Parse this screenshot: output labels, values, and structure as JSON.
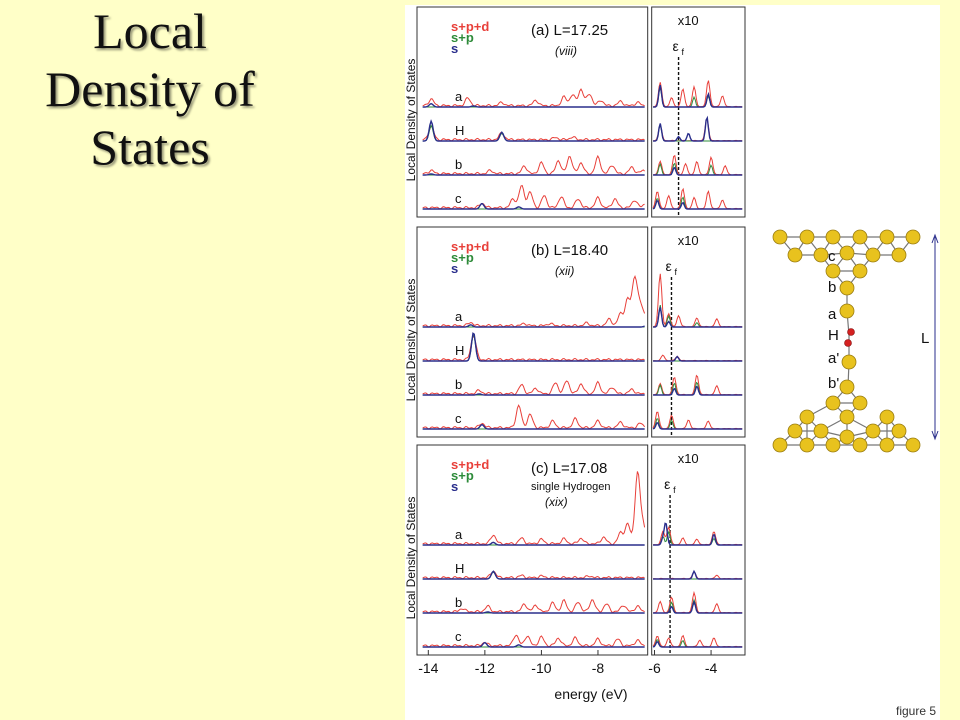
{
  "slide": {
    "title": "Local\nDensity of\nStates",
    "caption": "figure 5"
  },
  "chart_data": {
    "type": "line",
    "xlabel": "energy (eV)",
    "ylabel": "Local Density of States",
    "x_ticks": [
      -14,
      -12,
      -10,
      -8,
      -6,
      -4
    ],
    "xlim": [
      -14.4,
      -2.8
    ],
    "inset_break_x": -6.1,
    "inset_scale_label": "x10",
    "fermi_label": "ε",
    "fermi_sub": "f",
    "legend": [
      "s+p+d",
      "s+p",
      "s"
    ],
    "series_colors": {
      "s+p+d": "#e8403a",
      "s+p": "#2e8b3a",
      "s": "#2a2e8c"
    },
    "panels": [
      {
        "label": "(a) L=17.25",
        "sublabel": "(viii)",
        "note": "",
        "fermi_energy": -5.15,
        "traces": [
          {
            "name": "a",
            "s": [
              [
                -13.9,
                0.15
              ],
              [
                -12.4,
                0.05
              ]
            ],
            "spd": [
              [
                -13.9,
                0.3
              ],
              [
                -12.6,
                0.35
              ],
              [
                -11.4,
                0.15
              ],
              [
                -10.2,
                0.25
              ],
              [
                -9.2,
                0.4
              ],
              [
                -8.9,
                0.5
              ],
              [
                -8.6,
                0.75
              ],
              [
                -8.3,
                0.55
              ],
              [
                -7.9,
                0.25
              ],
              [
                -7.2,
                0.2
              ],
              [
                -6.6,
                0.15
              ],
              [
                -5.8,
                1.1
              ],
              [
                -5.4,
                0.4
              ],
              [
                -5.0,
                0.8
              ],
              [
                -4.6,
                0.9
              ],
              [
                -4.1,
                1.2
              ],
              [
                -3.6,
                0.5
              ]
            ],
            "sp": [
              [
                -5.8,
                0.9
              ],
              [
                -4.6,
                0.45
              ],
              [
                -4.1,
                0.5
              ]
            ],
            "inset_s": [
              [
                -5.8,
                1.0
              ],
              [
                -4.1,
                0.6
              ]
            ]
          },
          {
            "name": "H",
            "s": [
              [
                -13.9,
                0.9
              ],
              [
                -11.4,
                0.4
              ],
              [
                -5.8,
                0.8
              ],
              [
                -5.15,
                0.2
              ],
              [
                -4.8,
                0.35
              ],
              [
                -4.15,
                1.1
              ]
            ],
            "spd": [
              [
                -13.9,
                0.6
              ],
              [
                -11.4,
                0.3
              ],
              [
                -9.5,
                0.1
              ],
              [
                -8.9,
                0.12
              ],
              [
                -5.8,
                0.7
              ],
              [
                -4.15,
                1.0
              ]
            ],
            "sp": [
              [
                -13.9,
                0.7
              ],
              [
                -11.4,
                0.35
              ],
              [
                -5.8,
                0.75
              ]
            ],
            "inset_s": []
          },
          {
            "name": "b",
            "s": [
              [
                -13.9,
                0.05
              ]
            ],
            "spd": [
              [
                -13.9,
                0.15
              ],
              [
                -11.8,
                0.15
              ],
              [
                -10.6,
                0.35
              ],
              [
                -10.0,
                0.5
              ],
              [
                -9.4,
                0.6
              ],
              [
                -9.0,
                0.8
              ],
              [
                -8.6,
                0.5
              ],
              [
                -8.0,
                0.75
              ],
              [
                -7.5,
                0.4
              ],
              [
                -6.8,
                0.3
              ],
              [
                -6.4,
                0.15
              ],
              [
                -5.8,
                0.6
              ],
              [
                -5.3,
                0.9
              ],
              [
                -4.9,
                0.5
              ],
              [
                -4.5,
                0.6
              ],
              [
                -4.0,
                0.8
              ],
              [
                -3.5,
                0.4
              ]
            ],
            "sp": [
              [
                -5.8,
                0.5
              ],
              [
                -5.3,
                0.55
              ],
              [
                -4.0,
                0.45
              ]
            ],
            "inset_s": [
              [
                -5.3,
                0.35
              ]
            ]
          },
          {
            "name": "c",
            "s": [
              [
                -12.1,
                0.25
              ],
              [
                -10.8,
                0.1
              ]
            ],
            "spd": [
              [
                -12.1,
                0.2
              ],
              [
                -11.0,
                0.4
              ],
              [
                -10.7,
                1.0
              ],
              [
                -10.4,
                0.7
              ],
              [
                -9.9,
                0.55
              ],
              [
                -9.3,
                0.5
              ],
              [
                -8.7,
                0.4
              ],
              [
                -8.0,
                0.45
              ],
              [
                -7.4,
                0.4
              ],
              [
                -6.7,
                0.35
              ],
              [
                -6.3,
                0.2
              ],
              [
                -5.9,
                0.8
              ],
              [
                -5.5,
                0.6
              ],
              [
                -5.0,
                0.9
              ],
              [
                -4.6,
                0.5
              ],
              [
                -4.1,
                0.8
              ],
              [
                -3.6,
                0.4
              ]
            ],
            "sp": [
              [
                -5.9,
                0.5
              ],
              [
                -5.0,
                0.55
              ]
            ],
            "inset_s": [
              [
                -5.9,
                0.4
              ],
              [
                -5.0,
                0.3
              ]
            ]
          }
        ]
      },
      {
        "label": "(b) L=18.40",
        "sublabel": "(xii)",
        "note": "",
        "fermi_energy": -5.4,
        "traces": [
          {
            "name": "a",
            "s": [
              [
                -12.5,
                0.1
              ],
              [
                -6.3,
                0.05
              ]
            ],
            "spd": [
              [
                -12.5,
                0.15
              ],
              [
                -10.6,
                0.1
              ],
              [
                -9.7,
                0.1
              ],
              [
                -8.4,
                0.12
              ],
              [
                -7.6,
                0.3
              ],
              [
                -7.2,
                0.55
              ],
              [
                -6.95,
                1.2
              ],
              [
                -6.7,
                2.2
              ],
              [
                -6.5,
                0.9
              ],
              [
                -6.3,
                0.4
              ],
              [
                -5.8,
                2.4
              ],
              [
                -5.5,
                0.6
              ],
              [
                -5.15,
                0.5
              ],
              [
                -4.5,
                0.4
              ],
              [
                -3.8,
                0.35
              ]
            ],
            "sp": [
              [
                -5.8,
                1.0
              ],
              [
                -5.5,
                0.5
              ],
              [
                -4.5,
                0.2
              ]
            ],
            "inset_s": [
              [
                -5.8,
                0.9
              ],
              [
                -5.5,
                0.25
              ]
            ]
          },
          {
            "name": "H",
            "s": [
              [
                -12.4,
                1.3
              ]
            ],
            "spd": [
              [
                -12.4,
                1.1
              ],
              [
                -5.7,
                0.25
              ],
              [
                -5.2,
                0.2
              ]
            ],
            "sp": [
              [
                -12.4,
                1.2
              ]
            ],
            "inset_s": [
              [
                -5.2,
                0.2
              ]
            ]
          },
          {
            "name": "b",
            "s": [
              [
                -12.2,
                0.05
              ]
            ],
            "spd": [
              [
                -12.2,
                0.15
              ],
              [
                -10.7,
                0.4
              ],
              [
                -10.2,
                0.25
              ],
              [
                -9.5,
                0.5
              ],
              [
                -9.1,
                0.6
              ],
              [
                -8.6,
                0.45
              ],
              [
                -8.0,
                0.5
              ],
              [
                -7.5,
                0.3
              ],
              [
                -6.8,
                0.2
              ],
              [
                -5.8,
                0.5
              ],
              [
                -5.3,
                0.8
              ],
              [
                -4.5,
                0.9
              ],
              [
                -3.8,
                0.4
              ]
            ],
            "sp": [
              [
                -5.8,
                0.45
              ],
              [
                -5.3,
                0.55
              ],
              [
                -4.5,
                0.6
              ]
            ],
            "inset_s": [
              [
                -5.3,
                0.3
              ],
              [
                -4.5,
                0.4
              ]
            ]
          },
          {
            "name": "c",
            "s": [
              [
                -12.1,
                0.2
              ]
            ],
            "spd": [
              [
                -12.1,
                0.2
              ],
              [
                -10.8,
                1.0
              ],
              [
                -10.4,
                0.6
              ],
              [
                -9.6,
                0.3
              ],
              [
                -8.8,
                0.4
              ],
              [
                -8.0,
                0.3
              ],
              [
                -7.2,
                0.25
              ],
              [
                -6.5,
                0.2
              ],
              [
                -5.9,
                0.8
              ],
              [
                -5.4,
                0.6
              ],
              [
                -4.8,
                0.4
              ],
              [
                -4.1,
                0.35
              ]
            ],
            "sp": [
              [
                -5.9,
                0.5
              ],
              [
                -5.4,
                0.4
              ]
            ],
            "inset_s": [
              [
                -5.9,
                0.3
              ]
            ]
          }
        ]
      },
      {
        "label": "(c) L=17.08",
        "sublabel": "(xix)",
        "note": "single Hydrogen",
        "fermi_energy": -5.45,
        "traces": [
          {
            "name": "a",
            "s": [
              [
                -11.7,
                0.12
              ],
              [
                -5.7,
                0.3
              ]
            ],
            "spd": [
              [
                -11.7,
                0.4
              ],
              [
                -10.7,
                0.25
              ],
              [
                -10.0,
                0.2
              ],
              [
                -9.2,
                0.22
              ],
              [
                -8.6,
                0.25
              ],
              [
                -7.8,
                0.3
              ],
              [
                -7.2,
                0.5
              ],
              [
                -6.95,
                0.9
              ],
              [
                -6.6,
                3.2
              ],
              [
                -6.4,
                0.8
              ],
              [
                -5.7,
                0.6
              ],
              [
                -5.5,
                0.8
              ],
              [
                -5.0,
                0.3
              ],
              [
                -4.5,
                0.25
              ],
              [
                -3.9,
                0.6
              ]
            ],
            "sp": [
              [
                -5.7,
                0.4
              ],
              [
                -5.5,
                0.6
              ],
              [
                -3.9,
                0.3
              ]
            ],
            "inset_s": [
              [
                -5.6,
                1.0
              ],
              [
                -3.9,
                0.5
              ]
            ]
          },
          {
            "name": "H",
            "s": [
              [
                -11.7,
                0.35
              ],
              [
                -4.6,
                0.35
              ]
            ],
            "spd": [
              [
                -11.7,
                0.3
              ],
              [
                -10.7,
                0.1
              ],
              [
                -10.0,
                0.08
              ],
              [
                -8.3,
                0.08
              ],
              [
                -4.6,
                0.3
              ],
              [
                -3.8,
                0.15
              ]
            ],
            "sp": [
              [
                -11.7,
                0.32
              ]
            ],
            "inset_s": []
          },
          {
            "name": "b",
            "s": [
              [
                -11.9,
                0.05
              ]
            ],
            "spd": [
              [
                -12.8,
                0.15
              ],
              [
                -11.9,
                0.25
              ],
              [
                -10.6,
                0.35
              ],
              [
                -10.2,
                0.3
              ],
              [
                -9.6,
                0.4
              ],
              [
                -9.2,
                0.5
              ],
              [
                -8.7,
                0.45
              ],
              [
                -8.2,
                0.55
              ],
              [
                -7.7,
                0.35
              ],
              [
                -7.1,
                0.3
              ],
              [
                -6.6,
                0.25
              ],
              [
                -5.8,
                0.5
              ],
              [
                -5.4,
                0.7
              ],
              [
                -4.6,
                0.9
              ],
              [
                -3.8,
                0.4
              ]
            ],
            "sp": [
              [
                -5.4,
                0.5
              ],
              [
                -4.6,
                0.6
              ]
            ],
            "inset_s": [
              [
                -5.4,
                0.3
              ],
              [
                -4.6,
                0.5
              ]
            ]
          },
          {
            "name": "c",
            "s": [
              [
                -12.0,
                0.2
              ],
              [
                -10.8,
                0.1
              ]
            ],
            "spd": [
              [
                -12.0,
                0.15
              ],
              [
                -10.9,
                0.5
              ],
              [
                -10.5,
                0.45
              ],
              [
                -10.0,
                0.4
              ],
              [
                -9.4,
                0.35
              ],
              [
                -8.8,
                0.35
              ],
              [
                -8.0,
                0.3
              ],
              [
                -7.3,
                0.3
              ],
              [
                -6.6,
                0.25
              ],
              [
                -5.9,
                0.5
              ],
              [
                -5.5,
                0.4
              ],
              [
                -5.0,
                0.5
              ],
              [
                -4.4,
                0.3
              ],
              [
                -3.9,
                0.4
              ]
            ],
            "sp": [
              [
                -5.9,
                0.35
              ],
              [
                -5.0,
                0.3
              ]
            ],
            "inset_s": [
              [
                -5.9,
                0.25
              ]
            ]
          }
        ]
      }
    ]
  },
  "structure": {
    "labels": [
      "c",
      "b",
      "a",
      "H",
      "a'",
      "b'"
    ],
    "length_label": "L"
  }
}
